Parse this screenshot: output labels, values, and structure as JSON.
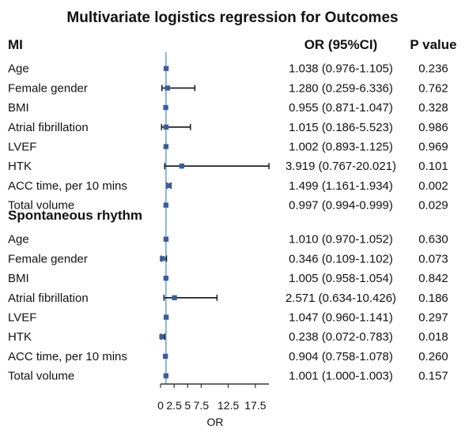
{
  "chart_data": {
    "type": "forest",
    "title": "Multivariate logistics regression for Outcomes",
    "column_headers": {
      "or_ci": "OR (95%CI)",
      "p_value": "P value"
    },
    "xlabel": "OR",
    "xlim": [
      0,
      20
    ],
    "reference_line": 1,
    "x_ticks": [
      "0",
      "2.5",
      "5",
      "7.5",
      "12.5",
      "17.5"
    ],
    "x_tick_values": [
      0,
      2.5,
      5,
      7.5,
      12.5,
      17.5
    ],
    "marker_color": "#3a5da0",
    "reference_line_color": "#6fa8d6",
    "groups": [
      {
        "name": "MI",
        "rows": [
          {
            "label": "Age",
            "or": 1.038,
            "lo": 0.976,
            "hi": 1.105,
            "or_ci": "1.038 (0.976-1.105)",
            "p": "0.236"
          },
          {
            "label": "Female gender",
            "or": 1.28,
            "lo": 0.259,
            "hi": 6.336,
            "or_ci": "1.280 (0.259-6.336)",
            "p": "0.762"
          },
          {
            "label": "BMI",
            "or": 0.955,
            "lo": 0.871,
            "hi": 1.047,
            "or_ci": "0.955 (0.871-1.047)",
            "p": "0.328"
          },
          {
            "label": "Atrial fibrillation",
            "or": 1.015,
            "lo": 0.186,
            "hi": 5.523,
            "or_ci": "1.015 (0.186-5.523)",
            "p": "0.986"
          },
          {
            "label": "LVEF",
            "or": 1.002,
            "lo": 0.893,
            "hi": 1.125,
            "or_ci": "1.002 (0.893-1.125)",
            "p": "0.969"
          },
          {
            "label": "HTK",
            "or": 3.919,
            "lo": 0.767,
            "hi": 20.021,
            "or_ci": "3.919 (0.767-20.021)",
            "p": "0.101"
          },
          {
            "label": "ACC time, per 10 mins",
            "or": 1.499,
            "lo": 1.161,
            "hi": 1.934,
            "or_ci": "1.499 (1.161-1.934)",
            "p": "0.002"
          },
          {
            "label": "Total volume",
            "or": 0.997,
            "lo": 0.994,
            "hi": 0.999,
            "or_ci": "0.997 (0.994-0.999)",
            "p": "0.029"
          }
        ]
      },
      {
        "name": "Spontaneous rhythm",
        "rows": [
          {
            "label": "Age",
            "or": 1.01,
            "lo": 0.97,
            "hi": 1.052,
            "or_ci": "1.010 (0.970-1.052)",
            "p": "0.630"
          },
          {
            "label": "Female gender",
            "or": 0.346,
            "lo": 0.109,
            "hi": 1.102,
            "or_ci": "0.346 (0.109-1.102)",
            "p": "0.073"
          },
          {
            "label": "BMI",
            "or": 1.005,
            "lo": 0.958,
            "hi": 1.054,
            "or_ci": "1.005 (0.958-1.054)",
            "p": "0.842"
          },
          {
            "label": "Atrial fibrillation",
            "or": 2.571,
            "lo": 0.634,
            "hi": 10.426,
            "or_ci": "2.571 (0.634-10.426)",
            "p": "0.186"
          },
          {
            "label": "LVEF",
            "or": 1.047,
            "lo": 0.96,
            "hi": 1.141,
            "or_ci": "1.047 (0.960-1.141)",
            "p": "0.297"
          },
          {
            "label": "HTK",
            "or": 0.238,
            "lo": 0.072,
            "hi": 0.783,
            "or_ci": "0.238 (0.072-0.783)",
            "p": "0.018"
          },
          {
            "label": "ACC time, per 10 mins",
            "or": 0.904,
            "lo": 0.758,
            "hi": 1.078,
            "or_ci": "0.904 (0.758-1.078)",
            "p": "0.260"
          },
          {
            "label": "Total volume",
            "or": 1.001,
            "lo": 1.0,
            "hi": 1.003,
            "or_ci": "1.001 (1.000-1.003)",
            "p": "0.157"
          }
        ]
      }
    ]
  }
}
